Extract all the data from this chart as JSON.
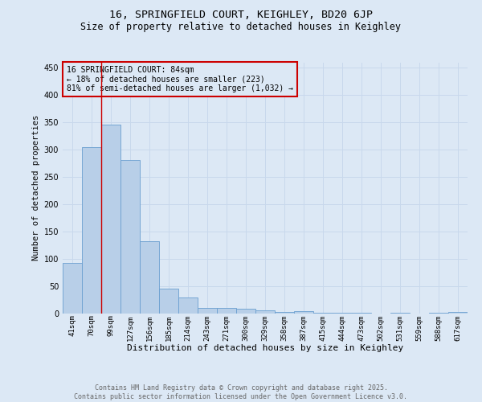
{
  "title": "16, SPRINGFIELD COURT, KEIGHLEY, BD20 6JP",
  "subtitle": "Size of property relative to detached houses in Keighley",
  "xlabel": "Distribution of detached houses by size in Keighley",
  "ylabel": "Number of detached properties",
  "categories": [
    "41sqm",
    "70sqm",
    "99sqm",
    "127sqm",
    "156sqm",
    "185sqm",
    "214sqm",
    "243sqm",
    "271sqm",
    "300sqm",
    "329sqm",
    "358sqm",
    "387sqm",
    "415sqm",
    "444sqm",
    "473sqm",
    "502sqm",
    "531sqm",
    "559sqm",
    "588sqm",
    "617sqm"
  ],
  "values": [
    93,
    305,
    346,
    281,
    133,
    46,
    30,
    10,
    11,
    9,
    6,
    3,
    4,
    2,
    2,
    1,
    0,
    1,
    0,
    2,
    3
  ],
  "bar_color": "#b8cfe8",
  "bar_edge_color": "#6a9fd0",
  "grid_color": "#c8d8ec",
  "background_color": "#dce8f5",
  "annotation_box_text": "16 SPRINGFIELD COURT: 84sqm\n← 18% of detached houses are smaller (223)\n81% of semi-detached houses are larger (1,032) →",
  "annotation_box_color": "#cc0000",
  "red_line_x": 1.5,
  "ylim": [
    0,
    460
  ],
  "footnote": "Contains HM Land Registry data © Crown copyright and database right 2025.\nContains public sector information licensed under the Open Government Licence v3.0.",
  "title_fontsize": 9.5,
  "subtitle_fontsize": 8.5,
  "ylabel_fontsize": 7.5,
  "xlabel_fontsize": 8,
  "tick_fontsize": 6.5,
  "annotation_fontsize": 7,
  "footnote_fontsize": 6
}
